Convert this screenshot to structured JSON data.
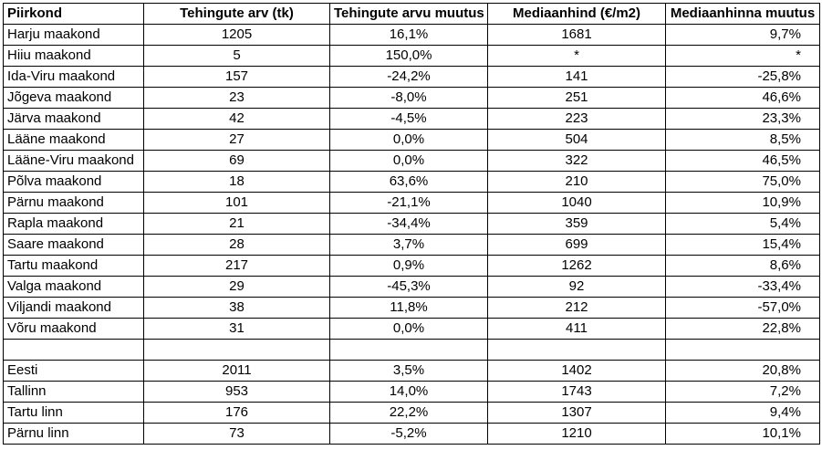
{
  "table": {
    "headers": [
      "Piirkond",
      "Tehingute arv (tk)",
      "Tehingute arvu muutus",
      "Mediaanhind (€/m2)",
      "Mediaanhinna muutus"
    ],
    "rows": [
      [
        "Harju maakond",
        "1205",
        "16,1%",
        "1681",
        "9,7%"
      ],
      [
        "Hiiu maakond",
        "5",
        "150,0%",
        "*",
        "*"
      ],
      [
        "Ida-Viru maakond",
        "157",
        "-24,2%",
        "141",
        "-25,8%"
      ],
      [
        "Jõgeva maakond",
        "23",
        "-8,0%",
        "251",
        "46,6%"
      ],
      [
        "Järva maakond",
        "42",
        "-4,5%",
        "223",
        "23,3%"
      ],
      [
        "Lääne maakond",
        "27",
        "0,0%",
        "504",
        "8,5%"
      ],
      [
        "Lääne-Viru maakond",
        "69",
        "0,0%",
        "322",
        "46,5%"
      ],
      [
        "Põlva maakond",
        "18",
        "63,6%",
        "210",
        "75,0%"
      ],
      [
        "Pärnu maakond",
        "101",
        "-21,1%",
        "1040",
        "10,9%"
      ],
      [
        "Rapla maakond",
        "21",
        "-34,4%",
        "359",
        "5,4%"
      ],
      [
        "Saare maakond",
        "28",
        "3,7%",
        "699",
        "15,4%"
      ],
      [
        "Tartu maakond",
        "217",
        "0,9%",
        "1262",
        "8,6%"
      ],
      [
        "Valga maakond",
        "29",
        "-45,3%",
        "92",
        "-33,4%"
      ],
      [
        "Viljandi maakond",
        "38",
        "11,8%",
        "212",
        "-57,0%"
      ],
      [
        "Võru maakond",
        "31",
        "0,0%",
        "411",
        "22,8%"
      ],
      [
        "",
        "",
        "",
        "",
        ""
      ],
      [
        "Eesti",
        "2011",
        "3,5%",
        "1402",
        "20,8%"
      ],
      [
        "Tallinn",
        "953",
        "14,0%",
        "1743",
        "7,2%"
      ],
      [
        "Tartu linn",
        "176",
        "22,2%",
        "1307",
        "9,4%"
      ],
      [
        "Pärnu linn",
        "73",
        "-5,2%",
        "1210",
        "10,1%"
      ]
    ]
  }
}
